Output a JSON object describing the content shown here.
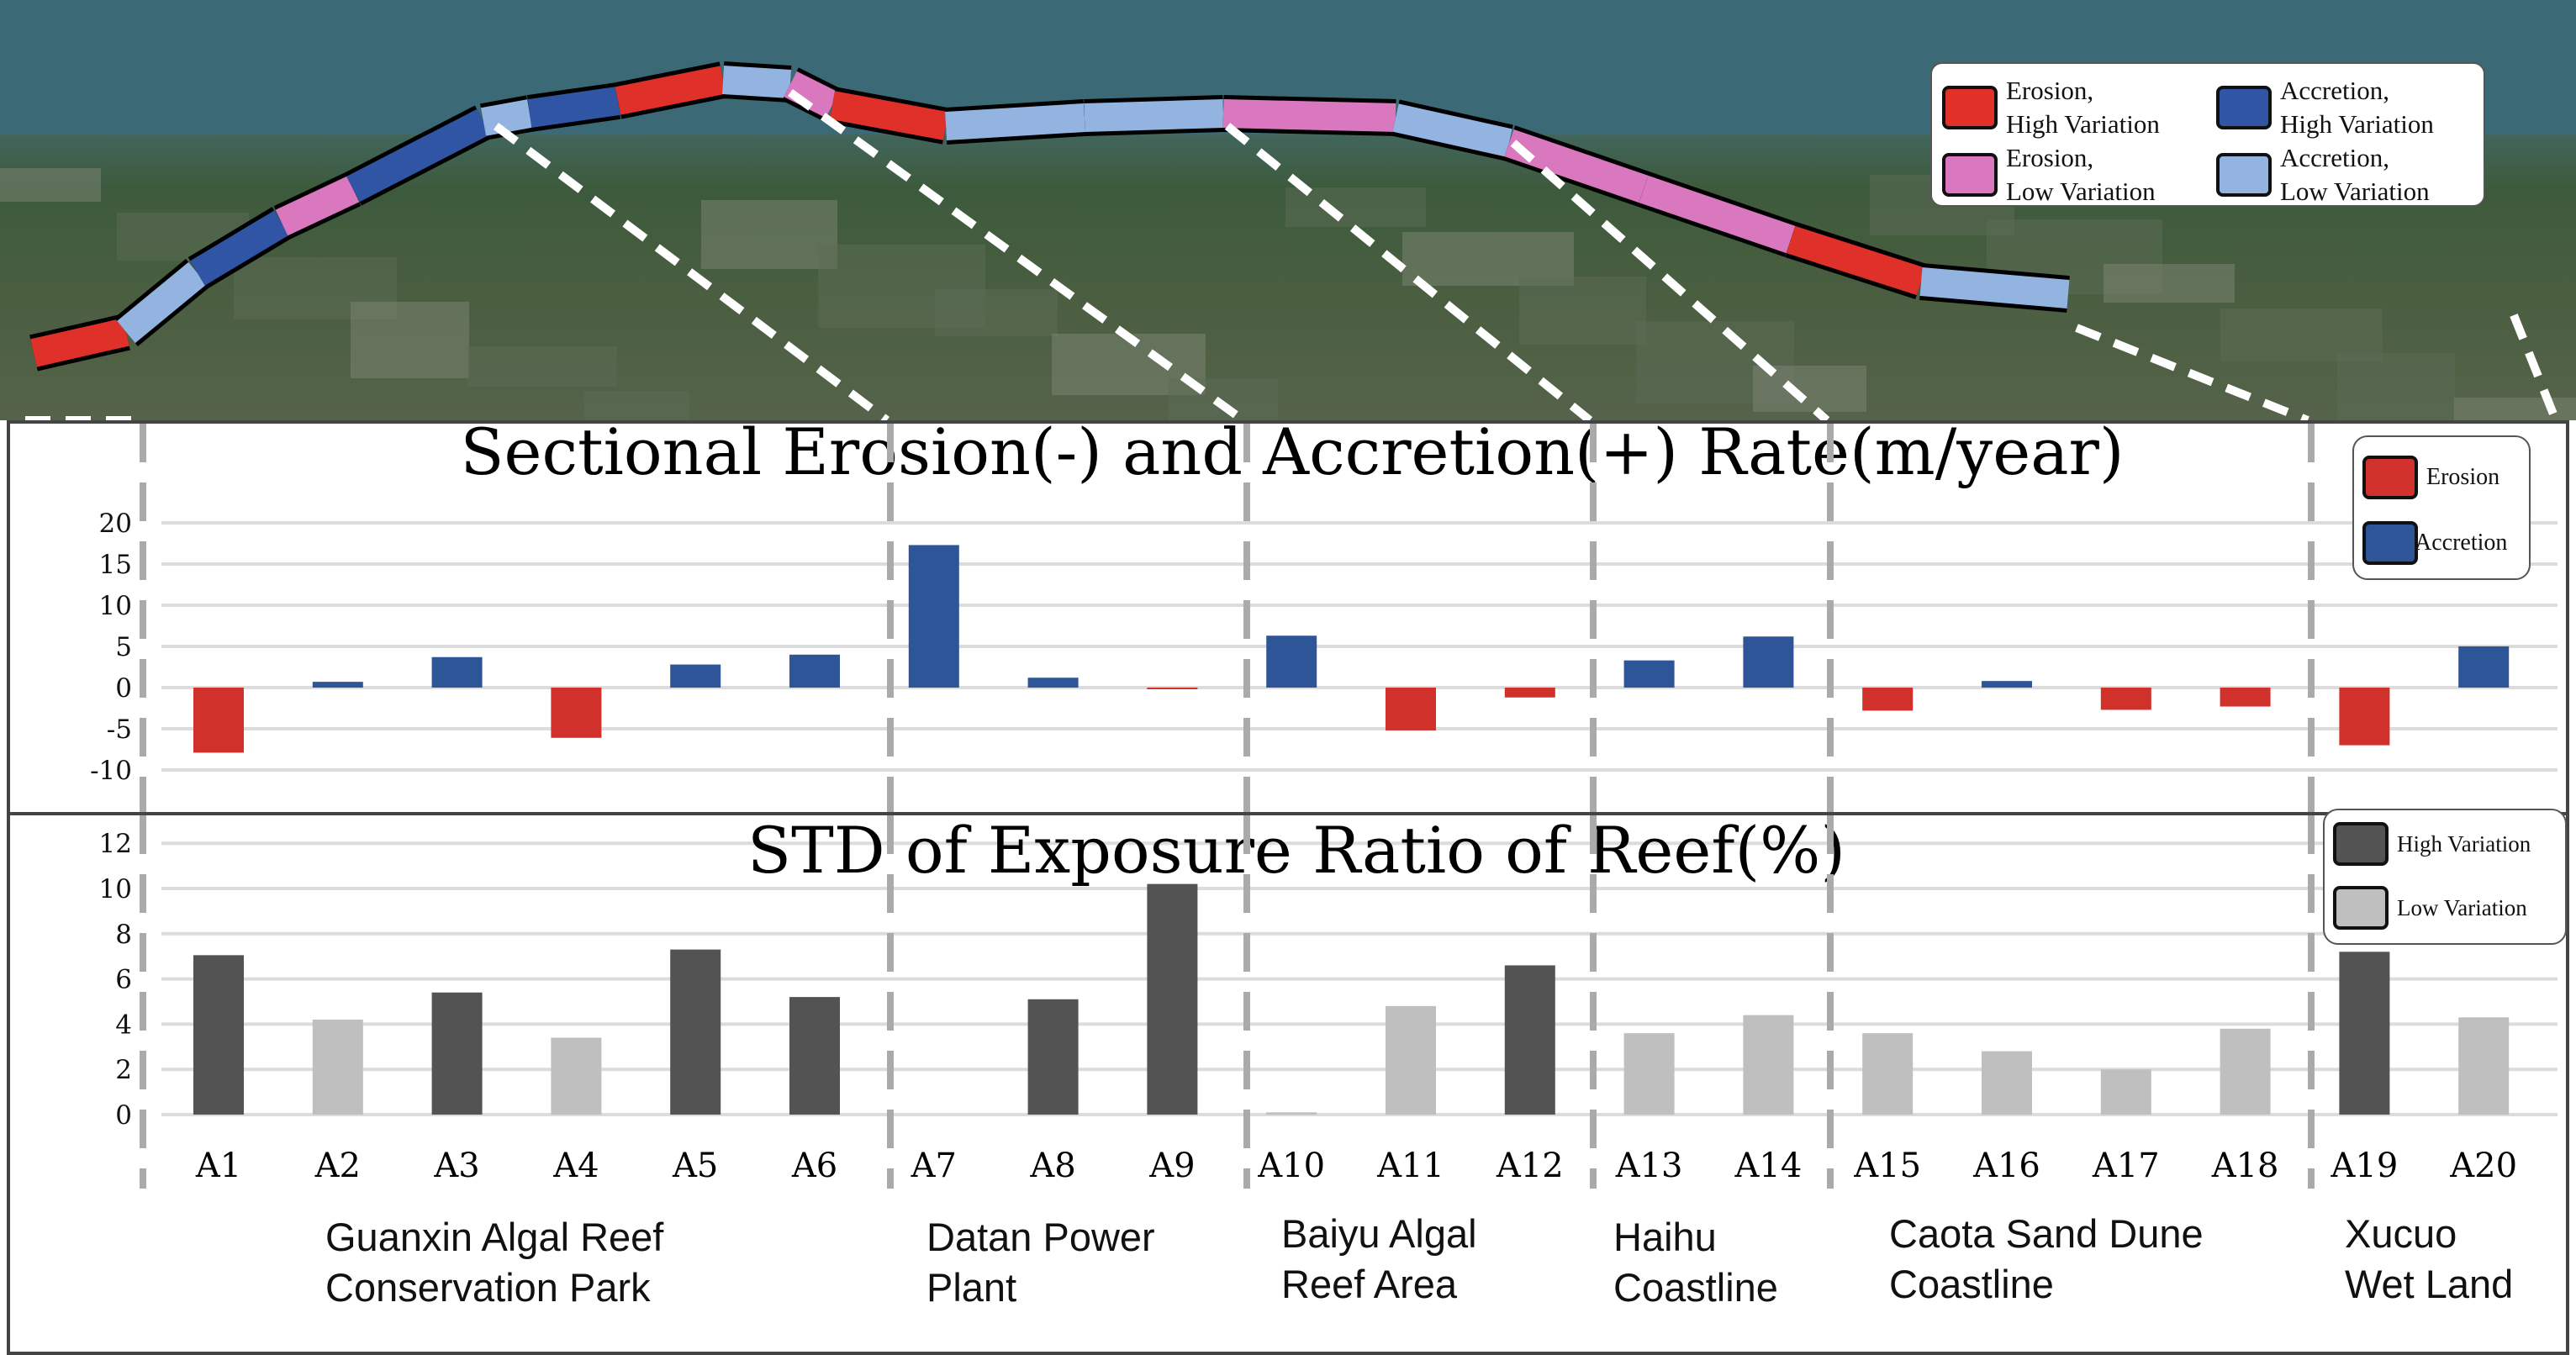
{
  "map": {
    "legend": [
      {
        "label": "Erosion,\nHigh Variation",
        "color": "#e0302a"
      },
      {
        "label": "Accretion,\nHigh Variation",
        "color": "#2f55a4"
      },
      {
        "label": "Erosion,\nLow Variation",
        "color": "#d977bf"
      },
      {
        "label": "Accretion,\nLow Variation",
        "color": "#93b3e0"
      }
    ],
    "segment_classes": [
      "erosion_high",
      "accretion_low",
      "accretion_high",
      "erosion_low",
      "accretion_high",
      "accretion_low",
      "accretion_high",
      "erosion_high",
      "accretion_low",
      "erosion_low",
      "erosion_high",
      "accretion_low",
      "accretion_low",
      "erosion_low",
      "accretion_low",
      "erosion_low",
      "erosion_low",
      "erosion_high",
      "accretion_low"
    ]
  },
  "chart_data": [
    {
      "type": "bar",
      "title": "Sectional Erosion(-) and Accretion(+) Rate(m/year)",
      "categories": [
        "A1",
        "A2",
        "A3",
        "A4",
        "A5",
        "A6",
        "A7",
        "A8",
        "A9",
        "A10",
        "A11",
        "A12",
        "A13",
        "A14",
        "A15",
        "A16",
        "A17",
        "A18",
        "A19",
        "A20"
      ],
      "values": [
        -7.9,
        0.7,
        3.7,
        -6.1,
        2.8,
        4.0,
        17.3,
        1.2,
        -0.2,
        6.3,
        -5.2,
        -1.2,
        3.3,
        6.2,
        -2.8,
        0.8,
        -2.7,
        -2.3,
        -7.0,
        5.0
      ],
      "yticks": [
        "20",
        "15",
        "10",
        "5",
        "0",
        "-5",
        "-10"
      ],
      "ylim": [
        -10,
        20
      ],
      "grid": true,
      "legend": [
        {
          "name": "Erosion",
          "color": "#d0312b"
        },
        {
          "name": "Accretion",
          "color": "#2d5597"
        }
      ],
      "legend_position": "top-right"
    },
    {
      "type": "bar",
      "title": "STD of Exposure Ratio of Reef(%)",
      "categories": [
        "A1",
        "A2",
        "A3",
        "A4",
        "A5",
        "A6",
        "A7",
        "A8",
        "A9",
        "A10",
        "A11",
        "A12",
        "A13",
        "A14",
        "A15",
        "A16",
        "A17",
        "A18",
        "A19",
        "A20"
      ],
      "values": [
        7.05,
        4.2,
        5.4,
        3.4,
        7.3,
        5.2,
        null,
        5.1,
        10.2,
        0.1,
        4.8,
        6.6,
        3.6,
        4.4,
        3.6,
        2.8,
        2.0,
        3.8,
        7.2,
        4.3
      ],
      "variation": [
        "High",
        "Low",
        "High",
        "Low",
        "High",
        "High",
        null,
        "High",
        "High",
        "Low",
        "Low",
        "High",
        "Low",
        "Low",
        "Low",
        "Low",
        "Low",
        "Low",
        "High",
        "Low"
      ],
      "yticks": [
        "12",
        "10",
        "8",
        "6",
        "4",
        "2",
        "0"
      ],
      "ylim": [
        0,
        12
      ],
      "grid": true,
      "legend": [
        {
          "name": "High Variation",
          "color": "#545354"
        },
        {
          "name": "Low Variation",
          "color": "#bfbfbf"
        }
      ],
      "legend_position": "top-right"
    }
  ],
  "regions": [
    {
      "label": "Guanxin Algal Reef\nConservation Park"
    },
    {
      "label": "Datan Power\nPlant"
    },
    {
      "label": "Baiyu Algal\nReef Area"
    },
    {
      "label": "Haihu\nCoastline"
    },
    {
      "label": "Caota Sand Dune\nCoastline"
    },
    {
      "label": "Xucuo\nWet Land"
    }
  ]
}
